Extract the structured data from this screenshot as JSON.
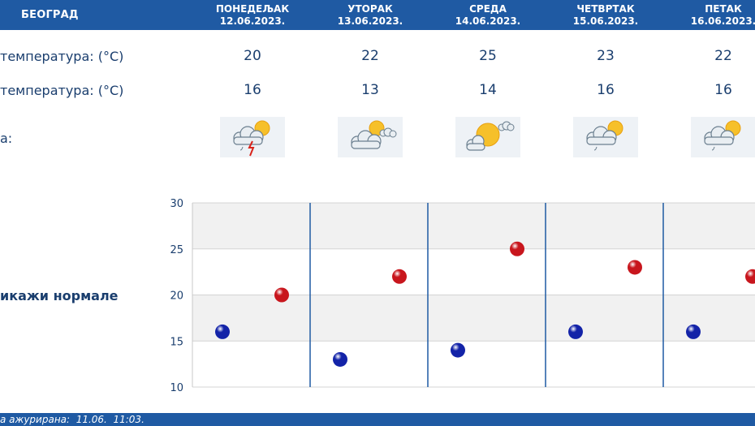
{
  "header": {
    "city": "БЕОГРАД",
    "days": [
      {
        "name": "ПОНЕДЕЉАК",
        "date": "12.06.2023."
      },
      {
        "name": "УТОРАК",
        "date": "13.06.2023."
      },
      {
        "name": "СРЕДА",
        "date": "14.06.2023."
      },
      {
        "name": "ЧЕТВРТАК",
        "date": "15.06.2023."
      },
      {
        "name": "ПЕТАК",
        "date": "16.06.2023."
      }
    ]
  },
  "rows": {
    "max_label": "температура: (°C)",
    "min_label": "температура: (°C)",
    "weather_label": "а:"
  },
  "forecast": [
    {
      "max": "20",
      "min": "16",
      "icon": "sun-cloud-rain-lightning-icon"
    },
    {
      "max": "22",
      "min": "13",
      "icon": "sun-cloud-icon"
    },
    {
      "max": "25",
      "min": "14",
      "icon": "sun-small-cloud-icon"
    },
    {
      "max": "23",
      "min": "16",
      "icon": "sun-cloud-light-rain-icon"
    },
    {
      "max": "22",
      "min": "16",
      "icon": "sun-cloud-light-rain-icon"
    }
  ],
  "normals_label": "икажи нормале",
  "footer": {
    "text": "а ажурирана:  11.06.  11:03."
  },
  "colors": {
    "header_bg": "#1f5aa3",
    "max_point": "#c8161d",
    "min_point": "#1323a8",
    "text": "#1a3e6e"
  },
  "chart_data": {
    "type": "scatter",
    "categories": [
      "12.06.2023.",
      "13.06.2023.",
      "14.06.2023.",
      "15.06.2023.",
      "16.06.2023."
    ],
    "series": [
      {
        "values": [
          16,
          13,
          14,
          16,
          16
        ],
        "color": "#1323a8"
      },
      {
        "values": [
          20,
          22,
          25,
          23,
          22
        ],
        "color": "#c8161d"
      }
    ],
    "yticks": [
      10,
      15,
      20,
      25,
      30
    ],
    "ylim": [
      10,
      30
    ],
    "grid": true
  }
}
